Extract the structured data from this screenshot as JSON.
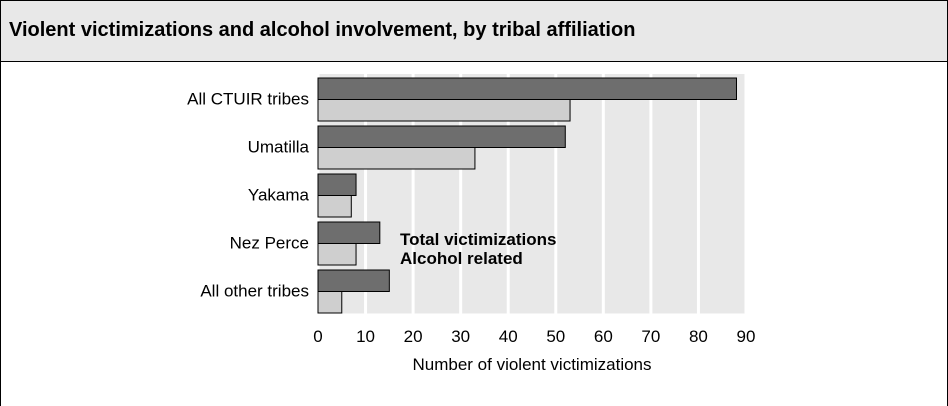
{
  "title": "Violent victimizations and alcohol involvement, by tribal affiliation",
  "chart_data": {
    "type": "bar",
    "orientation": "horizontal",
    "title": "Violent victimizations and alcohol involvement, by tribal affiliation",
    "categories": [
      "All CTUIR tribes",
      "Umatilla",
      "Yakama",
      "Nez Perce",
      "All other tribes"
    ],
    "series": [
      {
        "name": "Total victimizations",
        "values": [
          88,
          52,
          8,
          13,
          15
        ],
        "color": "#6e6e6e"
      },
      {
        "name": "Alcohol related",
        "values": [
          53,
          33,
          7,
          8,
          5
        ],
        "color": "#cfcfcf"
      }
    ],
    "xlabel": "Number of violent victimizations",
    "ylabel": "",
    "xlim": [
      0,
      90
    ],
    "xticks": [
      "0",
      "10",
      "20",
      "30",
      "40",
      "50",
      "60",
      "70",
      "80",
      "90"
    ],
    "grid": true,
    "plot_background": "#e8e8e8",
    "gridline_color": "#ffffff",
    "legend": {
      "placement": "inside-center"
    }
  }
}
